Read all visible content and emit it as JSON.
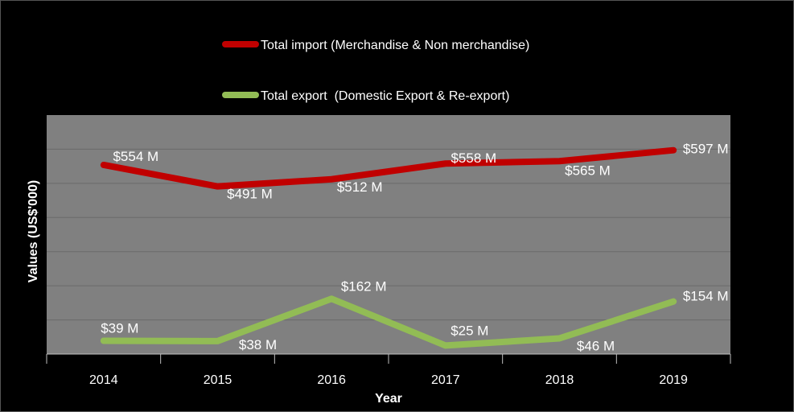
{
  "chart_data": {
    "type": "line",
    "categories": [
      "2014",
      "2015",
      "2016",
      "2017",
      "2018",
      "2019"
    ],
    "xlabel": "Year",
    "ylabel": "Values (US$'000)",
    "grid": true,
    "legend_position": "top",
    "series": [
      {
        "name": "Total import (Merchandise & Non merchandise)",
        "color": "#c00000",
        "values": [
          554,
          491,
          512,
          558,
          565,
          597
        ],
        "labels": [
          "$554 M",
          "$491 M",
          "$512 M",
          "$558 M",
          "$565 M",
          "$597 M"
        ]
      },
      {
        "name": "Total export  (Domestic Export & Re-export)",
        "color": "#92bc55",
        "values": [
          39,
          38,
          162,
          25,
          46,
          154
        ],
        "labels": [
          "$39 M",
          "$38 M",
          "$162 M",
          "$25 M",
          "$46 M",
          "$154 M"
        ]
      }
    ],
    "colors": {
      "background": "#000000",
      "plot_area": "#808080",
      "gridline": "#6a6a6a"
    }
  }
}
